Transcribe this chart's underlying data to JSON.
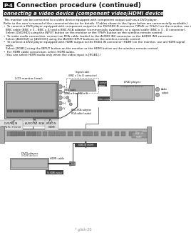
{
  "title": "Connection procedure (continued)",
  "title_box_label": "P-4",
  "section_title": "Connecting a video device (component video/HDMI device)",
  "body_lines": [
    "This monitor can be connected to a video device equipped with component output such as a DVD player.",
    "Refer to the user’s manual of the connected device for details. (Cables shown in the figure below are commercially available.)",
    "•  To connect a DVD player equipped with component output to the DVD/HD IN connector (YPbPr or YCbCr) on the monitor, use a",
    "   BNC cable (BNC x 3 – BNC x 3) and a BNC-RCA adaptor (commercially available), or a signal cable (BNC x 3 – D connector).",
    "   Select [DVD/HD] using the INPUT button on the monitor or the YPbPr button on the wireless remote control.",
    "•  To make audio connection, connect an RCA cable (audio) to the AUDIO IN2 connector or the AUDIO IN3 connector.",
    "   Select [AUDIO2] or [AUDIO3] using the AUDIO INPUT buttons on the wireless remote control.",
    "•  To connect a DVD player equipped with HDMI output to the RGB1 IN connector (HDMI) on the monitor, use an HDMI signal",
    "   cable.",
    "   Select [RGB1] using the INPUT button on the monitor or the HDMI button on the wireless remote control.",
    "•  For HDMI cable connection, select HDMI audio.",
    "   (You can select HDMI audio only when the video input is [RGB1].)"
  ],
  "footer": "* glish-20",
  "bg": "#ffffff",
  "header_box_bg": "#1a1a1a",
  "header_box_fg": "#ffffff",
  "section_bar_bg": "#2a2a2a",
  "section_bar_fg": "#ffffff",
  "text_color": "#111111",
  "gray_light": "#cccccc",
  "gray_mid": "#999999",
  "gray_dark": "#555555",
  "gray_box": "#bbbbbb",
  "label_box_bg": "#dddddd",
  "dark_label_bg": "#444444",
  "dark_label_fg": "#ffffff"
}
